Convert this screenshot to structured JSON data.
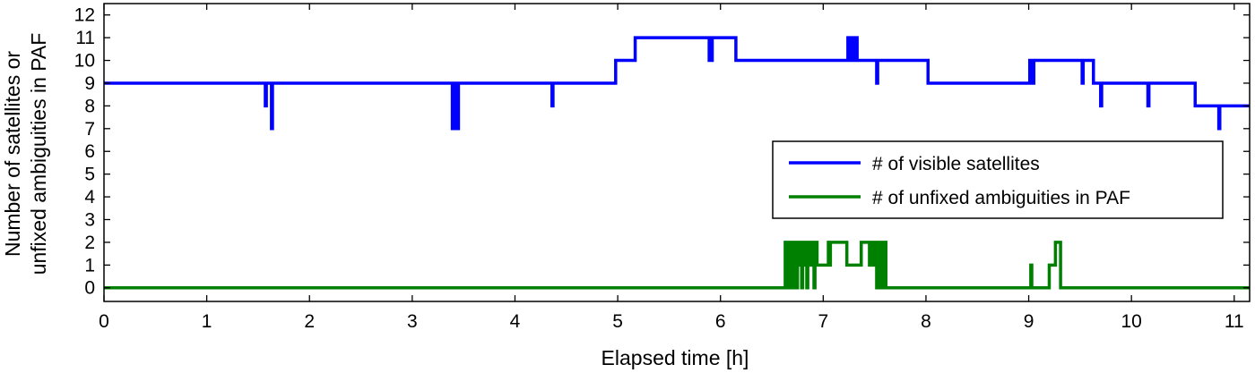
{
  "chart_data": {
    "type": "line",
    "xlabel": "Elapsed time [h]",
    "ylabel_lines": [
      "Number of satellites or",
      "unfixed ambiguities in PAF"
    ],
    "xlim": [
      0,
      11.15
    ],
    "ylim": [
      -0.6,
      12.5
    ],
    "xticks": [
      0,
      1,
      2,
      3,
      4,
      5,
      6,
      7,
      8,
      9,
      10,
      11
    ],
    "yticks": [
      0,
      1,
      2,
      3,
      4,
      5,
      6,
      7,
      8,
      9,
      10,
      11,
      12
    ],
    "grid": false,
    "legend_position": "right",
    "series": [
      {
        "name": "# of visible satellites",
        "color": "#0000ff",
        "x": [
          0,
          1.56,
          1.57,
          1.58,
          1.6,
          1.62,
          1.63,
          1.64,
          1.66,
          3.38,
          3.39,
          3.4,
          3.4,
          3.41,
          3.42,
          3.43,
          3.44,
          3.45,
          4.35,
          4.36,
          4.37,
          4.97,
          4.98,
          5.16,
          5.17,
          5.88,
          5.89,
          5.9,
          5.91,
          5.92,
          6.14,
          6.15,
          7.23,
          7.24,
          7.26,
          7.27,
          7.29,
          7.3,
          7.32,
          7.33,
          7.35,
          7.36,
          7.51,
          7.52,
          7.53,
          8.01,
          8.02,
          9.0,
          9.01,
          9.02,
          9.03,
          9.04,
          9.05,
          9.06,
          9.51,
          9.52,
          9.53,
          9.62,
          9.63,
          9.69,
          9.7,
          9.71,
          10.15,
          10.16,
          10.17,
          10.61,
          10.62,
          10.84,
          10.85,
          10.86,
          11.15
        ],
        "y": [
          9,
          9,
          8,
          9,
          9,
          9,
          7,
          9,
          9,
          9,
          7,
          9,
          7,
          9,
          7,
          9,
          7,
          9,
          9,
          8,
          9,
          9,
          10,
          10,
          11,
          11,
          10,
          11,
          10,
          11,
          11,
          10,
          10,
          11,
          11,
          10,
          10,
          11,
          11,
          10,
          10,
          10,
          10,
          9,
          10,
          10,
          9,
          9,
          10,
          9,
          10,
          9,
          10,
          10,
          10,
          9,
          10,
          10,
          9,
          9,
          8,
          9,
          9,
          8,
          9,
          9,
          8,
          8,
          7,
          8,
          8
        ]
      },
      {
        "name": "# of unfixed ambiguities in PAF",
        "color": "#008000",
        "x": [
          0,
          6.62,
          6.63,
          6.64,
          6.65,
          6.66,
          6.67,
          6.68,
          6.69,
          6.7,
          6.71,
          6.72,
          6.73,
          6.74,
          6.75,
          6.76,
          6.77,
          6.78,
          6.79,
          6.8,
          6.81,
          6.82,
          6.83,
          6.84,
          6.85,
          6.86,
          6.87,
          6.88,
          6.89,
          6.9,
          6.91,
          6.92,
          6.93,
          6.94,
          6.95,
          7.04,
          7.05,
          7.06,
          7.07,
          7.08,
          7.22,
          7.23,
          7.36,
          7.37,
          7.38,
          7.44,
          7.45,
          7.46,
          7.48,
          7.49,
          7.51,
          7.52,
          7.54,
          7.55,
          7.56,
          7.57,
          7.58,
          7.59,
          7.6,
          7.61,
          7.62,
          9.01,
          9.02,
          9.03,
          9.19,
          9.2,
          9.25,
          9.26,
          9.3,
          9.31,
          11.15
        ],
        "y": [
          0,
          0,
          2,
          0,
          2,
          0,
          2,
          1,
          2,
          0,
          2,
          1,
          2,
          0,
          2,
          1,
          2,
          2,
          0,
          2,
          1,
          2,
          2,
          0,
          2,
          1,
          2,
          2,
          1,
          2,
          0,
          2,
          2,
          1,
          1,
          1,
          2,
          1,
          2,
          2,
          2,
          1,
          1,
          2,
          2,
          2,
          1,
          2,
          2,
          1,
          2,
          0,
          2,
          1,
          2,
          0,
          2,
          0,
          2,
          0,
          0,
          0,
          1,
          0,
          0,
          1,
          1,
          2,
          2,
          0,
          0
        ]
      }
    ]
  }
}
